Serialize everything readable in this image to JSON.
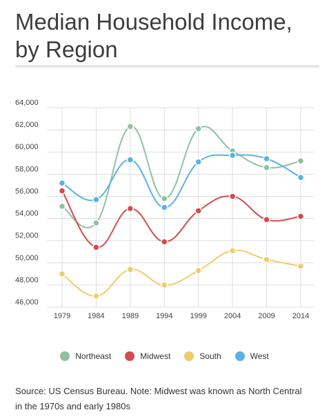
{
  "header": {
    "title_line1": "Median Household Income,",
    "title_line2": "by Region"
  },
  "chart_data": {
    "type": "line",
    "title": "Median Household Income, by Region",
    "xlabel": "",
    "ylabel": "",
    "x": [
      "1979",
      "1984",
      "1989",
      "1994",
      "1999",
      "2004",
      "2009",
      "2014"
    ],
    "ylim": [
      46000,
      64000
    ],
    "yticks": [
      46000,
      48000,
      50000,
      52000,
      54000,
      56000,
      58000,
      60000,
      62000,
      64000
    ],
    "ytick_labels": [
      "46,000",
      "48,000",
      "50,000",
      "52,000",
      "54,000",
      "56,000",
      "58,000",
      "60,000",
      "62,000",
      "64,000"
    ],
    "grid": true,
    "legend_position": "bottom",
    "series": [
      {
        "name": "Northeast",
        "color": "#8fc1a2",
        "values": [
          55100,
          53600,
          62300,
          55800,
          62100,
          60100,
          58600,
          59200
        ]
      },
      {
        "name": "Midwest",
        "color": "#d34c4e",
        "values": [
          56500,
          51400,
          54900,
          51900,
          54700,
          56000,
          53900,
          54200
        ]
      },
      {
        "name": "South",
        "color": "#f1cc6b",
        "values": [
          49000,
          47000,
          49400,
          48000,
          49300,
          51100,
          50300,
          49700
        ]
      },
      {
        "name": "West",
        "color": "#58b3e3",
        "values": [
          57200,
          55700,
          59300,
          55000,
          59100,
          59700,
          59400,
          57700
        ]
      }
    ]
  },
  "footer": {
    "source_line1": "Source: US Census Bureau. Note: Midwest was known as North Central",
    "source_line2": "in the 1970s and early 1980s"
  }
}
